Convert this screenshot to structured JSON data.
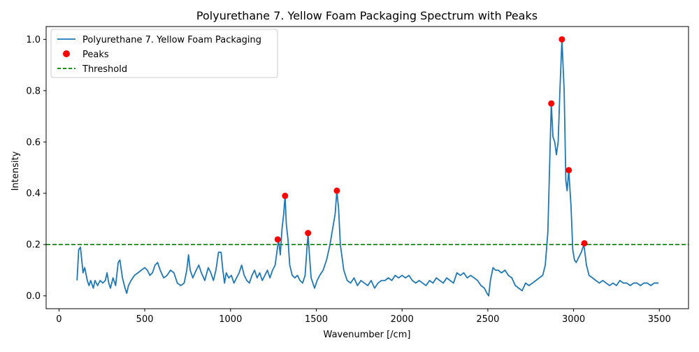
{
  "chart_data": {
    "type": "line",
    "title": "Polyurethane 7. Yellow Foam Packaging Spectrum with Peaks",
    "xlabel": "Wavenumber [/cm]",
    "ylabel": "Intensity",
    "xlim": [
      -75,
      3670
    ],
    "ylim": [
      -0.05,
      1.05
    ],
    "xticks": [
      0,
      500,
      1000,
      1500,
      2000,
      2500,
      3000,
      3500
    ],
    "xtick_labels": [
      "0",
      "500",
      "1000",
      "1500",
      "2000",
      "2500",
      "3000",
      "3500"
    ],
    "yticks": [
      0.0,
      0.2,
      0.4,
      0.6,
      0.8,
      1.0
    ],
    "ytick_labels": [
      "0.0",
      "0.2",
      "0.4",
      "0.6",
      "0.8",
      "1.0"
    ],
    "grid": false,
    "legend_position": "top-left",
    "legend": [
      "Polyurethane 7. Yellow Foam Packaging",
      "Peaks",
      "Threshold"
    ],
    "colors": {
      "spectrum": "#1f77b4",
      "peaks": "#ff0000",
      "threshold": "#008000"
    },
    "threshold": 0.2,
    "series": [
      {
        "name": "Polyurethane 7. Yellow Foam Packaging",
        "points": [
          [
            105,
            0.06
          ],
          [
            115,
            0.18
          ],
          [
            125,
            0.19
          ],
          [
            140,
            0.09
          ],
          [
            150,
            0.11
          ],
          [
            165,
            0.06
          ],
          [
            175,
            0.04
          ],
          [
            185,
            0.06
          ],
          [
            200,
            0.03
          ],
          [
            210,
            0.06
          ],
          [
            225,
            0.04
          ],
          [
            240,
            0.06
          ],
          [
            255,
            0.05
          ],
          [
            270,
            0.06
          ],
          [
            280,
            0.09
          ],
          [
            290,
            0.05
          ],
          [
            300,
            0.03
          ],
          [
            315,
            0.07
          ],
          [
            330,
            0.04
          ],
          [
            345,
            0.13
          ],
          [
            355,
            0.14
          ],
          [
            370,
            0.07
          ],
          [
            385,
            0.03
          ],
          [
            395,
            0.01
          ],
          [
            405,
            0.04
          ],
          [
            420,
            0.06
          ],
          [
            440,
            0.08
          ],
          [
            460,
            0.09
          ],
          [
            480,
            0.1
          ],
          [
            500,
            0.11
          ],
          [
            515,
            0.1
          ],
          [
            530,
            0.08
          ],
          [
            545,
            0.09
          ],
          [
            560,
            0.12
          ],
          [
            575,
            0.13
          ],
          [
            590,
            0.1
          ],
          [
            610,
            0.07
          ],
          [
            630,
            0.08
          ],
          [
            650,
            0.1
          ],
          [
            670,
            0.09
          ],
          [
            690,
            0.05
          ],
          [
            710,
            0.04
          ],
          [
            730,
            0.05
          ],
          [
            745,
            0.1
          ],
          [
            755,
            0.16
          ],
          [
            765,
            0.1
          ],
          [
            780,
            0.07
          ],
          [
            800,
            0.1
          ],
          [
            815,
            0.12
          ],
          [
            830,
            0.09
          ],
          [
            850,
            0.06
          ],
          [
            870,
            0.11
          ],
          [
            885,
            0.09
          ],
          [
            900,
            0.06
          ],
          [
            915,
            0.1
          ],
          [
            930,
            0.17
          ],
          [
            945,
            0.17
          ],
          [
            955,
            0.1
          ],
          [
            965,
            0.05
          ],
          [
            975,
            0.09
          ],
          [
            990,
            0.07
          ],
          [
            1005,
            0.08
          ],
          [
            1020,
            0.05
          ],
          [
            1035,
            0.07
          ],
          [
            1050,
            0.09
          ],
          [
            1065,
            0.12
          ],
          [
            1080,
            0.08
          ],
          [
            1095,
            0.06
          ],
          [
            1110,
            0.05
          ],
          [
            1125,
            0.08
          ],
          [
            1140,
            0.1
          ],
          [
            1155,
            0.07
          ],
          [
            1170,
            0.09
          ],
          [
            1185,
            0.06
          ],
          [
            1200,
            0.08
          ],
          [
            1215,
            0.1
          ],
          [
            1230,
            0.07
          ],
          [
            1245,
            0.1
          ],
          [
            1260,
            0.12
          ],
          [
            1270,
            0.17
          ],
          [
            1280,
            0.22
          ],
          [
            1290,
            0.16
          ],
          [
            1300,
            0.26
          ],
          [
            1310,
            0.32
          ],
          [
            1318,
            0.39
          ],
          [
            1325,
            0.28
          ],
          [
            1335,
            0.22
          ],
          [
            1345,
            0.12
          ],
          [
            1360,
            0.08
          ],
          [
            1375,
            0.07
          ],
          [
            1390,
            0.08
          ],
          [
            1405,
            0.06
          ],
          [
            1420,
            0.05
          ],
          [
            1435,
            0.08
          ],
          [
            1445,
            0.18
          ],
          [
            1452,
            0.24
          ],
          [
            1460,
            0.16
          ],
          [
            1470,
            0.07
          ],
          [
            1480,
            0.05
          ],
          [
            1490,
            0.03
          ],
          [
            1505,
            0.06
          ],
          [
            1520,
            0.08
          ],
          [
            1540,
            0.1
          ],
          [
            1560,
            0.14
          ],
          [
            1580,
            0.2
          ],
          [
            1595,
            0.26
          ],
          [
            1610,
            0.32
          ],
          [
            1620,
            0.41
          ],
          [
            1630,
            0.34
          ],
          [
            1640,
            0.2
          ],
          [
            1660,
            0.1
          ],
          [
            1680,
            0.06
          ],
          [
            1700,
            0.05
          ],
          [
            1720,
            0.07
          ],
          [
            1740,
            0.04
          ],
          [
            1760,
            0.06
          ],
          [
            1780,
            0.05
          ],
          [
            1800,
            0.04
          ],
          [
            1820,
            0.06
          ],
          [
            1840,
            0.03
          ],
          [
            1860,
            0.05
          ],
          [
            1880,
            0.06
          ],
          [
            1900,
            0.06
          ],
          [
            1920,
            0.07
          ],
          [
            1940,
            0.06
          ],
          [
            1960,
            0.08
          ],
          [
            1980,
            0.07
          ],
          [
            2000,
            0.08
          ],
          [
            2020,
            0.07
          ],
          [
            2040,
            0.08
          ],
          [
            2060,
            0.06
          ],
          [
            2080,
            0.05
          ],
          [
            2100,
            0.06
          ],
          [
            2120,
            0.05
          ],
          [
            2140,
            0.04
          ],
          [
            2160,
            0.06
          ],
          [
            2180,
            0.05
          ],
          [
            2200,
            0.07
          ],
          [
            2220,
            0.06
          ],
          [
            2240,
            0.05
          ],
          [
            2260,
            0.07
          ],
          [
            2280,
            0.06
          ],
          [
            2300,
            0.05
          ],
          [
            2320,
            0.09
          ],
          [
            2340,
            0.08
          ],
          [
            2360,
            0.09
          ],
          [
            2380,
            0.07
          ],
          [
            2400,
            0.08
          ],
          [
            2420,
            0.07
          ],
          [
            2440,
            0.06
          ],
          [
            2460,
            0.04
          ],
          [
            2480,
            0.03
          ],
          [
            2495,
            0.01
          ],
          [
            2505,
            0.0
          ],
          [
            2515,
            0.06
          ],
          [
            2530,
            0.11
          ],
          [
            2545,
            0.1
          ],
          [
            2560,
            0.1
          ],
          [
            2580,
            0.09
          ],
          [
            2600,
            0.1
          ],
          [
            2620,
            0.08
          ],
          [
            2640,
            0.07
          ],
          [
            2660,
            0.04
          ],
          [
            2680,
            0.03
          ],
          [
            2700,
            0.02
          ],
          [
            2720,
            0.05
          ],
          [
            2740,
            0.04
          ],
          [
            2760,
            0.05
          ],
          [
            2780,
            0.06
          ],
          [
            2800,
            0.07
          ],
          [
            2820,
            0.08
          ],
          [
            2835,
            0.12
          ],
          [
            2850,
            0.25
          ],
          [
            2860,
            0.5
          ],
          [
            2870,
            0.75
          ],
          [
            2880,
            0.62
          ],
          [
            2890,
            0.6
          ],
          [
            2900,
            0.55
          ],
          [
            2910,
            0.6
          ],
          [
            2920,
            0.8
          ],
          [
            2932,
            1.0
          ],
          [
            2945,
            0.8
          ],
          [
            2955,
            0.45
          ],
          [
            2962,
            0.41
          ],
          [
            2972,
            0.49
          ],
          [
            2985,
            0.35
          ],
          [
            2995,
            0.18
          ],
          [
            3005,
            0.14
          ],
          [
            3015,
            0.13
          ],
          [
            3030,
            0.15
          ],
          [
            3045,
            0.17
          ],
          [
            3060,
            0.2
          ],
          [
            3075,
            0.12
          ],
          [
            3090,
            0.08
          ],
          [
            3110,
            0.07
          ],
          [
            3130,
            0.06
          ],
          [
            3150,
            0.05
          ],
          [
            3170,
            0.06
          ],
          [
            3190,
            0.05
          ],
          [
            3210,
            0.04
          ],
          [
            3230,
            0.05
          ],
          [
            3250,
            0.04
          ],
          [
            3270,
            0.06
          ],
          [
            3290,
            0.05
          ],
          [
            3310,
            0.05
          ],
          [
            3330,
            0.04
          ],
          [
            3350,
            0.05
          ],
          [
            3370,
            0.05
          ],
          [
            3390,
            0.04
          ],
          [
            3410,
            0.05
          ],
          [
            3430,
            0.05
          ],
          [
            3450,
            0.04
          ],
          [
            3470,
            0.05
          ],
          [
            3485,
            0.05
          ],
          [
            3495,
            0.05
          ]
        ]
      }
    ],
    "peaks": [
      [
        1275,
        0.22
      ],
      [
        1318,
        0.39
      ],
      [
        1452,
        0.245
      ],
      [
        1620,
        0.41
      ],
      [
        2870,
        0.75
      ],
      [
        2932,
        1.0
      ],
      [
        2972,
        0.49
      ],
      [
        3063,
        0.205
      ]
    ]
  }
}
